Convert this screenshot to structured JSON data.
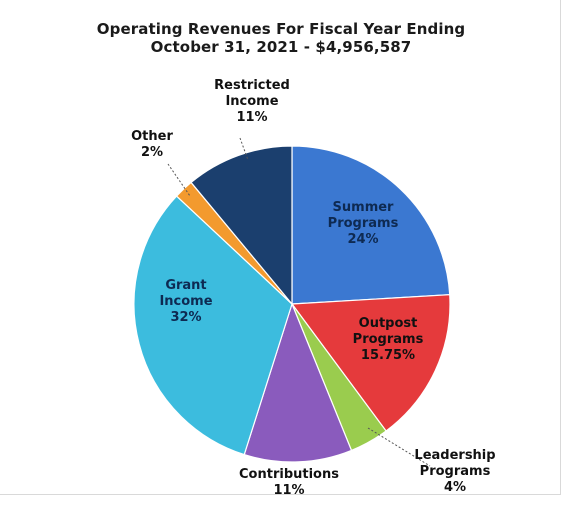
{
  "chart_data": {
    "type": "pie",
    "title_lines": [
      "Operating Revenues For Fiscal Year Ending",
      "October 31, 2021 - $4,956,587"
    ],
    "slices": [
      {
        "name": "Summer Programs",
        "label_lines": [
          "Summer",
          "Programs",
          "24%"
        ],
        "value": 24,
        "color": "#3b78d1"
      },
      {
        "name": "Outpost Programs",
        "label_lines": [
          "Outpost",
          "Programs",
          "15.75%"
        ],
        "value": 15.75,
        "color": "#e53a3c"
      },
      {
        "name": "Leadership Programs",
        "label_lines": [
          "Leadership",
          "Programs",
          "4%"
        ],
        "value": 4,
        "color": "#9acc4e"
      },
      {
        "name": "Contributions",
        "label_lines": [
          "Contributions",
          "11%"
        ],
        "value": 11,
        "color": "#8a5bbd"
      },
      {
        "name": "Grant Income",
        "label_lines": [
          "Grant",
          "Income",
          "32%"
        ],
        "value": 32,
        "color": "#3cbcde"
      },
      {
        "name": "Other",
        "label_lines": [
          "Other",
          "2%"
        ],
        "value": 2,
        "color": "#f39a2e"
      },
      {
        "name": "Restricted Income",
        "label_lines": [
          "Restricted",
          "Income",
          "11%"
        ],
        "value": 11,
        "color": "#1b3f6e"
      }
    ],
    "start_angle_deg": 0,
    "direction": "clockwise",
    "legend": "none"
  }
}
